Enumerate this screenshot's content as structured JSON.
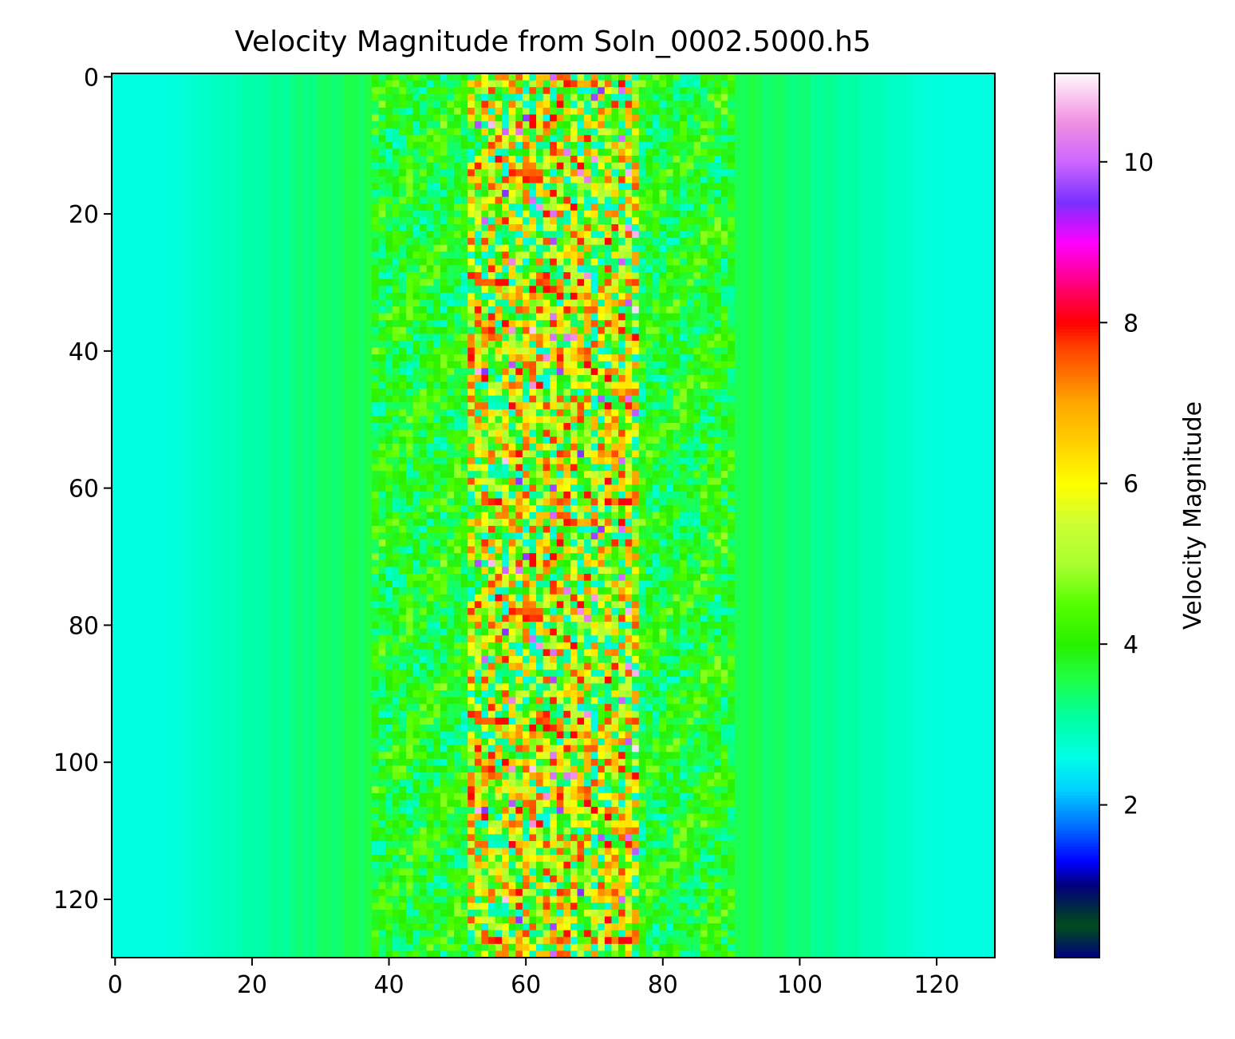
{
  "chart_data": {
    "type": "heatmap",
    "title": "Velocity Magnitude from Soln_0002.5000.h5",
    "xlabel": "",
    "ylabel": "",
    "grid": false,
    "origin": "upper",
    "shape": [
      129,
      129
    ],
    "xlim": [
      -0.5,
      128.5
    ],
    "ylim": [
      128.5,
      -0.5
    ],
    "x_ticks": [
      0,
      20,
      40,
      60,
      80,
      100,
      120
    ],
    "y_ticks": [
      0,
      20,
      40,
      60,
      80,
      100,
      120
    ],
    "x_tick_labels": [
      "0",
      "20",
      "40",
      "60",
      "80",
      "100",
      "120"
    ],
    "y_tick_labels": [
      "0",
      "20",
      "40",
      "60",
      "80",
      "100",
      "120"
    ],
    "colormap": "gist_ncar",
    "colormap_stops": [
      {
        "v": 0.1,
        "color": "#000080"
      },
      {
        "v": 0.5,
        "color": "#004d1a"
      },
      {
        "v": 1.0,
        "color": "#00007a"
      },
      {
        "v": 1.3,
        "color": "#0000ff"
      },
      {
        "v": 1.7,
        "color": "#0066ff"
      },
      {
        "v": 2.2,
        "color": "#00d2ff"
      },
      {
        "v": 2.6,
        "color": "#00ffe6"
      },
      {
        "v": 3.1,
        "color": "#00ffa0"
      },
      {
        "v": 3.6,
        "color": "#20ff40"
      },
      {
        "v": 4.0,
        "color": "#28f000"
      },
      {
        "v": 4.5,
        "color": "#55ff00"
      },
      {
        "v": 5.0,
        "color": "#aaff30"
      },
      {
        "v": 5.5,
        "color": "#ccff33"
      },
      {
        "v": 6.0,
        "color": "#ffff00"
      },
      {
        "v": 6.5,
        "color": "#ffd000"
      },
      {
        "v": 7.0,
        "color": "#ffa800"
      },
      {
        "v": 7.7,
        "color": "#ff4000"
      },
      {
        "v": 8.0,
        "color": "#ff0000"
      },
      {
        "v": 8.5,
        "color": "#ff0080"
      },
      {
        "v": 9.0,
        "color": "#ff00ff"
      },
      {
        "v": 9.5,
        "color": "#7a30ff"
      },
      {
        "v": 10.0,
        "color": "#cc66ff"
      },
      {
        "v": 10.5,
        "color": "#f090e0"
      },
      {
        "v": 11.1,
        "color": "#fff8fc"
      }
    ],
    "field_profile": {
      "background": 2.65,
      "center_column": 64,
      "band_half_width": 26,
      "band_peak": 3.8,
      "core_half_width": 12,
      "core_mean": 5.3,
      "core_noise": 2.8,
      "period_rows": 64
    },
    "colorbar": {
      "label": "Velocity Magnitude",
      "min": 0.1,
      "max": 11.1,
      "ticks": [
        2,
        4,
        6,
        8,
        10
      ],
      "tick_labels": [
        "2",
        "4",
        "6",
        "8",
        "10"
      ]
    }
  }
}
